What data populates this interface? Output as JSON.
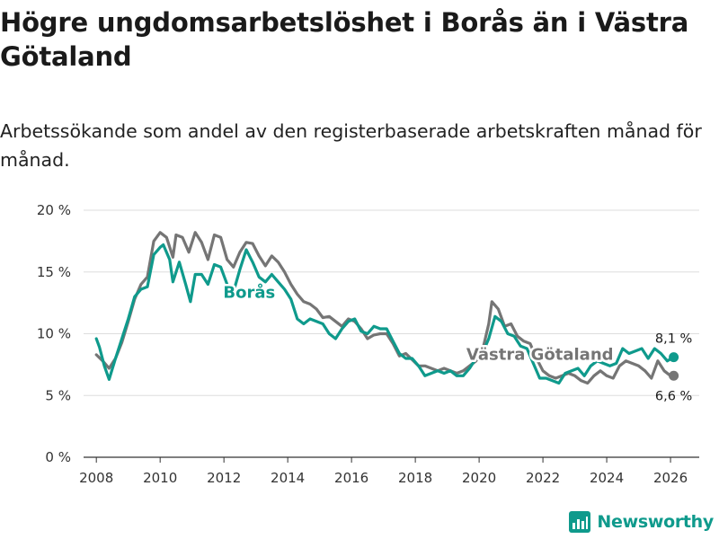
{
  "title": "Högre ungdomsarbetslöshet i Borås än i Västra Götaland",
  "subtitle": "Arbetssökande som andel av den registerbaserade arbetskraften månad för månad.",
  "brand": "Newsworthy",
  "colors": {
    "boras": "#0f9a8c",
    "vg": "#757575",
    "grid": "#dddddd",
    "axis": "#333333"
  },
  "chart_data": {
    "type": "line",
    "x_unit": "year",
    "xlim": [
      2007.6,
      2026.9
    ],
    "ylim": [
      0,
      20
    ],
    "x_ticks": [
      2008,
      2010,
      2012,
      2014,
      2016,
      2018,
      2020,
      2022,
      2024,
      2026
    ],
    "x_tick_labels": [
      "2008",
      "2010",
      "2012",
      "2014",
      "2016",
      "2018",
      "2020",
      "2022",
      "2024",
      "2026"
    ],
    "y_ticks": [
      0,
      5,
      10,
      15,
      20
    ],
    "y_tick_labels": [
      "0 %",
      "5 %",
      "10 %",
      "15 %",
      "20 %"
    ],
    "grid": "horizontal",
    "series": [
      {
        "name": "Västra Götaland",
        "color": "#757575",
        "end_label": "6,6 %",
        "points": [
          [
            2008.0,
            8.3
          ],
          [
            2008.2,
            7.8
          ],
          [
            2008.4,
            7.2
          ],
          [
            2008.6,
            8.0
          ],
          [
            2008.8,
            9.3
          ],
          [
            2009.0,
            11.0
          ],
          [
            2009.2,
            12.8
          ],
          [
            2009.4,
            14.0
          ],
          [
            2009.6,
            14.6
          ],
          [
            2009.8,
            17.5
          ],
          [
            2010.0,
            18.2
          ],
          [
            2010.2,
            17.8
          ],
          [
            2010.4,
            16.2
          ],
          [
            2010.5,
            18.0
          ],
          [
            2010.7,
            17.8
          ],
          [
            2010.9,
            16.6
          ],
          [
            2011.1,
            18.2
          ],
          [
            2011.3,
            17.4
          ],
          [
            2011.5,
            16.0
          ],
          [
            2011.7,
            18.0
          ],
          [
            2011.9,
            17.8
          ],
          [
            2012.1,
            16.0
          ],
          [
            2012.3,
            15.4
          ],
          [
            2012.5,
            16.6
          ],
          [
            2012.7,
            17.4
          ],
          [
            2012.9,
            17.3
          ],
          [
            2013.1,
            16.3
          ],
          [
            2013.3,
            15.5
          ],
          [
            2013.5,
            16.3
          ],
          [
            2013.7,
            15.8
          ],
          [
            2013.9,
            15.0
          ],
          [
            2014.1,
            14.0
          ],
          [
            2014.3,
            13.2
          ],
          [
            2014.5,
            12.6
          ],
          [
            2014.7,
            12.4
          ],
          [
            2014.9,
            12.0
          ],
          [
            2015.1,
            11.3
          ],
          [
            2015.3,
            11.4
          ],
          [
            2015.5,
            11.0
          ],
          [
            2015.7,
            10.6
          ],
          [
            2015.9,
            11.2
          ],
          [
            2016.1,
            11.0
          ],
          [
            2016.3,
            10.4
          ],
          [
            2016.5,
            9.6
          ],
          [
            2016.7,
            9.9
          ],
          [
            2016.9,
            10.0
          ],
          [
            2017.1,
            10.0
          ],
          [
            2017.3,
            9.2
          ],
          [
            2017.5,
            8.2
          ],
          [
            2017.7,
            8.4
          ],
          [
            2017.9,
            7.9
          ],
          [
            2018.1,
            7.4
          ],
          [
            2018.3,
            7.4
          ],
          [
            2018.5,
            7.2
          ],
          [
            2018.7,
            7.0
          ],
          [
            2018.9,
            7.2
          ],
          [
            2019.1,
            7.0
          ],
          [
            2019.3,
            6.8
          ],
          [
            2019.5,
            7.0
          ],
          [
            2019.7,
            7.4
          ],
          [
            2019.9,
            7.8
          ],
          [
            2020.1,
            8.6
          ],
          [
            2020.3,
            10.8
          ],
          [
            2020.4,
            12.6
          ],
          [
            2020.6,
            12.0
          ],
          [
            2020.8,
            10.6
          ],
          [
            2021.0,
            10.8
          ],
          [
            2021.2,
            9.8
          ],
          [
            2021.4,
            9.4
          ],
          [
            2021.6,
            9.2
          ],
          [
            2021.8,
            8.0
          ],
          [
            2022.0,
            7.0
          ],
          [
            2022.2,
            6.6
          ],
          [
            2022.4,
            6.4
          ],
          [
            2022.6,
            6.6
          ],
          [
            2022.8,
            6.8
          ],
          [
            2023.0,
            6.6
          ],
          [
            2023.2,
            6.2
          ],
          [
            2023.4,
            6.0
          ],
          [
            2023.6,
            6.6
          ],
          [
            2023.8,
            7.0
          ],
          [
            2024.0,
            6.6
          ],
          [
            2024.2,
            6.4
          ],
          [
            2024.4,
            7.4
          ],
          [
            2024.6,
            7.8
          ],
          [
            2024.8,
            7.6
          ],
          [
            2025.0,
            7.4
          ],
          [
            2025.2,
            7.0
          ],
          [
            2025.4,
            6.4
          ],
          [
            2025.6,
            7.8
          ],
          [
            2025.8,
            7.0
          ],
          [
            2026.0,
            6.6
          ],
          [
            2026.1,
            6.6
          ]
        ]
      },
      {
        "name": "Borås",
        "color": "#0f9a8c",
        "end_label": "8,1 %",
        "points": [
          [
            2008.0,
            9.6
          ],
          [
            2008.1,
            8.9
          ],
          [
            2008.25,
            7.4
          ],
          [
            2008.4,
            6.3
          ],
          [
            2008.6,
            8.0
          ],
          [
            2008.8,
            9.6
          ],
          [
            2009.0,
            11.2
          ],
          [
            2009.2,
            13.0
          ],
          [
            2009.4,
            13.6
          ],
          [
            2009.6,
            13.8
          ],
          [
            2009.8,
            16.4
          ],
          [
            2010.0,
            17.0
          ],
          [
            2010.1,
            17.2
          ],
          [
            2010.3,
            16.0
          ],
          [
            2010.4,
            14.2
          ],
          [
            2010.6,
            15.8
          ],
          [
            2010.8,
            14.0
          ],
          [
            2010.95,
            12.6
          ],
          [
            2011.1,
            14.8
          ],
          [
            2011.3,
            14.8
          ],
          [
            2011.5,
            14.0
          ],
          [
            2011.7,
            15.6
          ],
          [
            2011.9,
            15.4
          ],
          [
            2012.1,
            14.0
          ],
          [
            2012.3,
            13.4
          ],
          [
            2012.5,
            15.2
          ],
          [
            2012.7,
            16.8
          ],
          [
            2012.9,
            15.8
          ],
          [
            2013.1,
            14.6
          ],
          [
            2013.3,
            14.2
          ],
          [
            2013.5,
            14.8
          ],
          [
            2013.7,
            14.2
          ],
          [
            2013.9,
            13.6
          ],
          [
            2014.1,
            12.8
          ],
          [
            2014.3,
            11.2
          ],
          [
            2014.5,
            10.8
          ],
          [
            2014.7,
            11.2
          ],
          [
            2014.9,
            11.0
          ],
          [
            2015.1,
            10.8
          ],
          [
            2015.3,
            10.0
          ],
          [
            2015.5,
            9.6
          ],
          [
            2015.7,
            10.4
          ],
          [
            2015.9,
            11.0
          ],
          [
            2016.1,
            11.2
          ],
          [
            2016.3,
            10.2
          ],
          [
            2016.5,
            10.0
          ],
          [
            2016.7,
            10.6
          ],
          [
            2016.9,
            10.4
          ],
          [
            2017.1,
            10.4
          ],
          [
            2017.3,
            9.4
          ],
          [
            2017.5,
            8.4
          ],
          [
            2017.7,
            8.0
          ],
          [
            2017.9,
            8.0
          ],
          [
            2018.1,
            7.4
          ],
          [
            2018.3,
            6.6
          ],
          [
            2018.5,
            6.8
          ],
          [
            2018.7,
            7.0
          ],
          [
            2018.9,
            6.8
          ],
          [
            2019.1,
            7.0
          ],
          [
            2019.3,
            6.6
          ],
          [
            2019.5,
            6.6
          ],
          [
            2019.7,
            7.2
          ],
          [
            2019.9,
            8.0
          ],
          [
            2020.1,
            8.4
          ],
          [
            2020.3,
            9.6
          ],
          [
            2020.5,
            11.4
          ],
          [
            2020.7,
            11.0
          ],
          [
            2020.9,
            10.0
          ],
          [
            2021.1,
            9.8
          ],
          [
            2021.3,
            9.0
          ],
          [
            2021.5,
            8.8
          ],
          [
            2021.7,
            7.6
          ],
          [
            2021.9,
            6.4
          ],
          [
            2022.1,
            6.4
          ],
          [
            2022.3,
            6.2
          ],
          [
            2022.5,
            6.0
          ],
          [
            2022.7,
            6.8
          ],
          [
            2022.9,
            7.0
          ],
          [
            2023.1,
            7.2
          ],
          [
            2023.3,
            6.6
          ],
          [
            2023.5,
            7.4
          ],
          [
            2023.7,
            7.8
          ],
          [
            2023.9,
            7.6
          ],
          [
            2024.1,
            7.4
          ],
          [
            2024.3,
            7.6
          ],
          [
            2024.5,
            8.8
          ],
          [
            2024.7,
            8.4
          ],
          [
            2024.9,
            8.6
          ],
          [
            2025.1,
            8.8
          ],
          [
            2025.3,
            8.0
          ],
          [
            2025.5,
            8.8
          ],
          [
            2025.7,
            8.4
          ],
          [
            2025.9,
            7.8
          ],
          [
            2026.1,
            8.1
          ]
        ]
      }
    ]
  }
}
